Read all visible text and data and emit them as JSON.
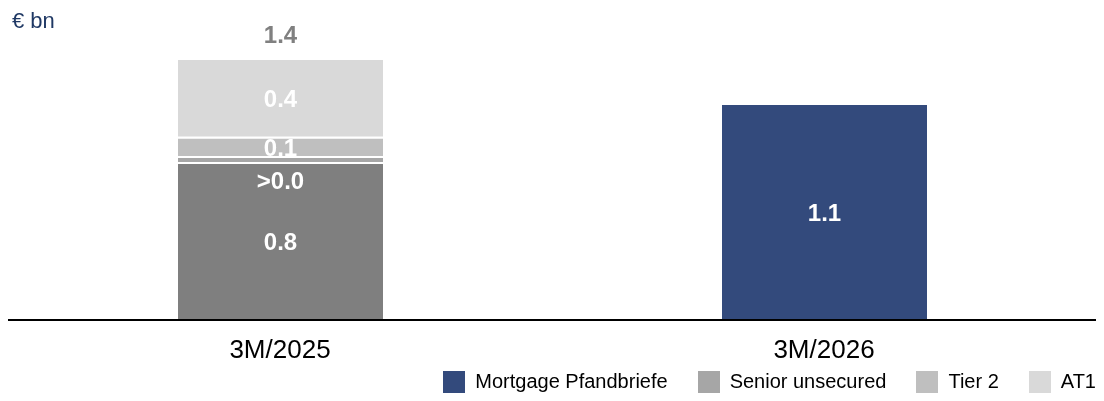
{
  "chart_data": {
    "type": "bar",
    "ylabel": "€ bn",
    "categories": [
      "3M/2025",
      "3M/2026"
    ],
    "stacked": true,
    "legend": "bottom right",
    "data_labels": false,
    "series": [
      {
        "name": "Mortgage Pfandbriefe",
        "color": "#334a7c",
        "colors": [
          "#7f7f7f",
          "#334a7c"
        ],
        "values": [
          0.8,
          1.1
        ],
        "value_labels": [
          "0.8",
          "1.1"
        ]
      },
      {
        "name": "Senior unsecured",
        "color": "#a6a6a6",
        "values": [
          0.03,
          null
        ],
        "value_labels": [
          ">0.0",
          null
        ]
      },
      {
        "name": "Tier 2",
        "color": "#bfbfbf",
        "values": [
          0.1,
          null
        ],
        "value_labels": [
          "0.1",
          null
        ]
      },
      {
        "name": "AT1",
        "color": "#d9d9d9",
        "values": [
          0.4,
          null
        ],
        "value_labels": [
          "0.4",
          null
        ]
      }
    ],
    "totals": [
      "1.4",
      null
    ]
  }
}
